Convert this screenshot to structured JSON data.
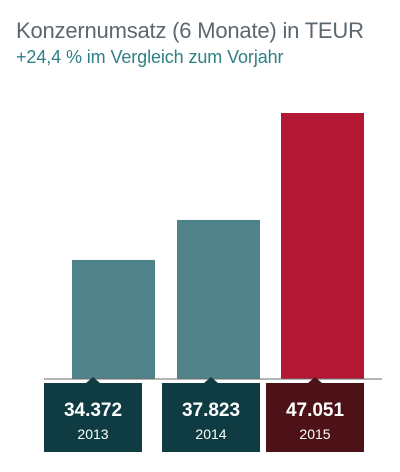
{
  "chart_data": {
    "type": "bar",
    "title": "Konzernumsatz (6 Monate) in TEUR",
    "subtitle": "+24,4 % im Vergleich zum Vorjahr",
    "categories": [
      "2013",
      "2014",
      "2015"
    ],
    "values": [
      34372,
      37823,
      47051
    ],
    "value_labels": [
      "34.372",
      "37.823",
      "47.051"
    ],
    "ylim": [
      24100,
      47051
    ],
    "grid": false,
    "legend": "none",
    "bar_colors": [
      "#4f8289",
      "#4f8289",
      "#b41733"
    ],
    "label_box_colors": [
      "#0f3c42",
      "#0f3c42",
      "#4d1218"
    ]
  }
}
